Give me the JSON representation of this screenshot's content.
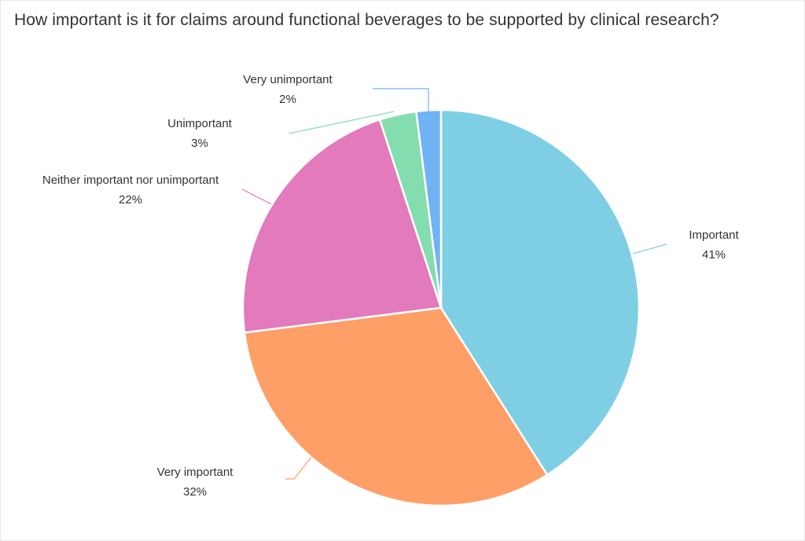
{
  "title": "How important is it for claims around functional beverages to be supported by clinical research?",
  "chart_data": {
    "type": "pie",
    "title": "How important is it for claims around functional beverages to be supported by clinical research?",
    "slices": [
      {
        "label": "Important",
        "value": 41,
        "display": "41%",
        "color": "#7fcfe4"
      },
      {
        "label": "Very important",
        "value": 32,
        "display": "32%",
        "color": "#ff9f68"
      },
      {
        "label": "Neither important nor unimportant",
        "value": 22,
        "display": "22%",
        "color": "#e27abb"
      },
      {
        "label": "Unimportant",
        "value": 3,
        "display": "3%",
        "color": "#84ddaf"
      },
      {
        "label": "Very unimportant",
        "value": 2,
        "display": "2%",
        "color": "#6fb3f5"
      }
    ]
  }
}
